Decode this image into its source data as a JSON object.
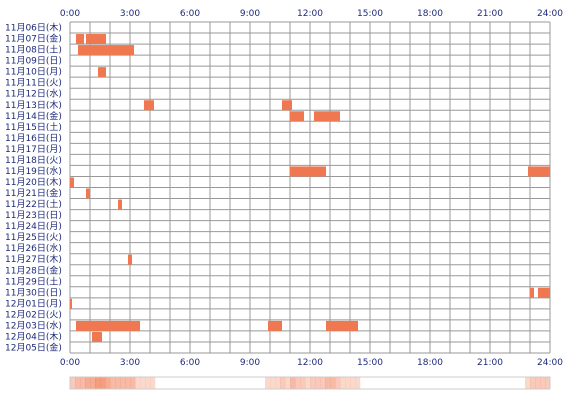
{
  "chart_data": {
    "type": "heatmap",
    "title": "",
    "xlabel": "",
    "ylabel": "",
    "x_ticks": [
      "0:00",
      "3:00",
      "6:00",
      "9:00",
      "12:00",
      "15:00",
      "18:00",
      "21:00",
      "24:00"
    ],
    "x_range_hours": [
      0,
      24
    ],
    "rows": [
      "11月06日(木)",
      "11月07日(金)",
      "11月08日(土)",
      "11月09日(日)",
      "11月10日(月)",
      "11月11日(火)",
      "11月12日(水)",
      "11月13日(木)",
      "11月14日(金)",
      "11月15日(土)",
      "11月16日(日)",
      "11月17日(月)",
      "11月18日(火)",
      "11月19日(水)",
      "11月20日(木)",
      "11月21日(金)",
      "11月22日(土)",
      "11月23日(日)",
      "11月24日(月)",
      "11月25日(火)",
      "11月26日(水)",
      "11月27日(木)",
      "11月28日(金)",
      "11月29日(土)",
      "11月30日(日)",
      "12月01日(月)",
      "12月02日(火)",
      "12月03日(水)",
      "12月04日(木)",
      "12月05日(金)"
    ],
    "segments": [
      {
        "row": 1,
        "start": 0.3,
        "end": 0.7
      },
      {
        "row": 1,
        "start": 0.8,
        "end": 1.8
      },
      {
        "row": 2,
        "start": 0.4,
        "end": 3.2
      },
      {
        "row": 4,
        "start": 1.4,
        "end": 1.8
      },
      {
        "row": 7,
        "start": 3.7,
        "end": 4.2
      },
      {
        "row": 7,
        "start": 10.6,
        "end": 11.1
      },
      {
        "row": 8,
        "start": 11.0,
        "end": 11.7
      },
      {
        "row": 8,
        "start": 12.2,
        "end": 13.5
      },
      {
        "row": 13,
        "start": 11.0,
        "end": 12.8
      },
      {
        "row": 13,
        "start": 22.9,
        "end": 24.0
      },
      {
        "row": 14,
        "start": 0.0,
        "end": 0.2
      },
      {
        "row": 15,
        "start": 0.8,
        "end": 1.0
      },
      {
        "row": 16,
        "start": 2.4,
        "end": 2.6
      },
      {
        "row": 21,
        "start": 2.9,
        "end": 3.1
      },
      {
        "row": 24,
        "start": 23.0,
        "end": 23.2
      },
      {
        "row": 24,
        "start": 23.4,
        "end": 24.0
      },
      {
        "row": 25,
        "start": 0.0,
        "end": 0.1
      },
      {
        "row": 27,
        "start": 0.3,
        "end": 2.2
      },
      {
        "row": 27,
        "start": 2.2,
        "end": 3.5
      },
      {
        "row": 27,
        "start": 9.9,
        "end": 10.6
      },
      {
        "row": 27,
        "start": 12.8,
        "end": 13.2
      },
      {
        "row": 27,
        "start": 13.2,
        "end": 14.4
      },
      {
        "row": 28,
        "start": 1.1,
        "end": 1.6
      }
    ],
    "grid": true,
    "summary_strip": true
  },
  "colors": {
    "bar": "#f07850",
    "grid": "#999999",
    "text": "#1e2a7a",
    "strip_border": "#cccccc"
  }
}
